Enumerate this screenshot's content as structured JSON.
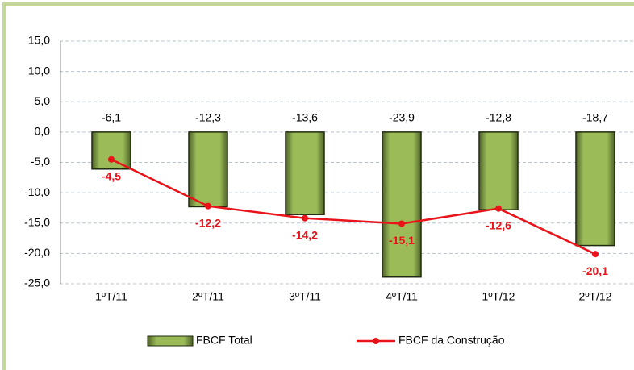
{
  "chart_data": {
    "type": "combo",
    "categories": [
      "1ºT/11",
      "2ºT/11",
      "3ºT/11",
      "4ºT/11",
      "1ºT/12",
      "2ºT/12"
    ],
    "series": [
      {
        "name": "FBCF Total",
        "type": "bar",
        "color": "#76923c",
        "values": [
          -6.1,
          -12.3,
          -13.6,
          -23.9,
          -12.8,
          -18.7
        ],
        "value_labels": [
          "-6,1",
          "-12,3",
          "-13,6",
          "-23,9",
          "-12,8",
          "-18,7"
        ]
      },
      {
        "name": "FBCF da Construção",
        "type": "line",
        "color": "#e8141a",
        "values": [
          -4.5,
          -12.2,
          -14.2,
          -15.1,
          -12.6,
          -20.1
        ],
        "value_labels": [
          "-4,5",
          "-12,2",
          "-14,2",
          "-15,1",
          "-12,6",
          "-20,1"
        ]
      }
    ],
    "ylim": [
      -25,
      15
    ],
    "yticks": [
      {
        "value": -25,
        "label": "-25,0"
      },
      {
        "value": -20,
        "label": "-20,0"
      },
      {
        "value": -15,
        "label": "-15,0"
      },
      {
        "value": -10,
        "label": "-10,0"
      },
      {
        "value": -5,
        "label": "-5,0"
      },
      {
        "value": 0,
        "label": "0,0"
      },
      {
        "value": 5,
        "label": "5,0"
      },
      {
        "value": 10,
        "label": "10,0"
      },
      {
        "value": 15,
        "label": "15,0"
      }
    ],
    "grid": true,
    "legend": "bottom"
  }
}
